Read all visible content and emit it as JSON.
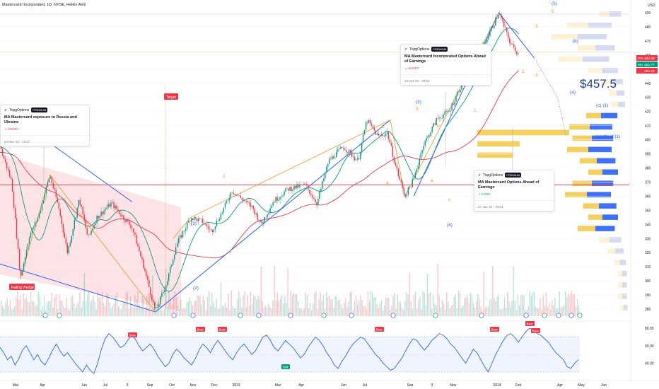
{
  "header": {
    "title": "Mastercard Incorporated, 1D, NYSE, Heikin Ashi",
    "currency": "USD"
  },
  "chart_data": [
    {
      "type": "candlestick",
      "x_ticks": [
        "Mar",
        "Apr",
        "Jun",
        "Jul",
        "3",
        "Sep",
        "Oct",
        "Nov",
        "Dec",
        "2023",
        "Mar",
        "Apr",
        "Jun",
        "Jul",
        "Sep",
        "3",
        "Nov",
        "2024",
        "Feb",
        "Apr",
        "May",
        "Jun"
      ],
      "y_ticks": [
        280,
        290,
        300,
        310,
        320,
        330,
        340,
        350,
        360,
        370,
        380,
        390,
        400,
        410,
        420,
        430,
        440,
        450,
        460,
        470,
        480,
        490
      ],
      "ylim": [
        275,
        495
      ],
      "price_path": [
        {
          "t": 0,
          "v": 395
        },
        {
          "t": 0.02,
          "v": 370
        },
        {
          "t": 0.035,
          "v": 302
        },
        {
          "t": 0.05,
          "v": 332
        },
        {
          "t": 0.065,
          "v": 345
        },
        {
          "t": 0.085,
          "v": 375
        },
        {
          "t": 0.1,
          "v": 352
        },
        {
          "t": 0.115,
          "v": 320
        },
        {
          "t": 0.135,
          "v": 358
        },
        {
          "t": 0.15,
          "v": 330
        },
        {
          "t": 0.165,
          "v": 345
        },
        {
          "t": 0.19,
          "v": 355
        },
        {
          "t": 0.21,
          "v": 345
        },
        {
          "t": 0.225,
          "v": 338
        },
        {
          "t": 0.245,
          "v": 310
        },
        {
          "t": 0.265,
          "v": 278
        },
        {
          "t": 0.285,
          "v": 300
        },
        {
          "t": 0.3,
          "v": 325
        },
        {
          "t": 0.325,
          "v": 345
        },
        {
          "t": 0.345,
          "v": 342
        },
        {
          "t": 0.36,
          "v": 335
        },
        {
          "t": 0.38,
          "v": 350
        },
        {
          "t": 0.395,
          "v": 364
        },
        {
          "t": 0.415,
          "v": 357
        },
        {
          "t": 0.43,
          "v": 352
        },
        {
          "t": 0.445,
          "v": 340
        },
        {
          "t": 0.465,
          "v": 356
        },
        {
          "t": 0.49,
          "v": 365
        },
        {
          "t": 0.52,
          "v": 368
        },
        {
          "t": 0.54,
          "v": 355
        },
        {
          "t": 0.56,
          "v": 385
        },
        {
          "t": 0.585,
          "v": 395
        },
        {
          "t": 0.61,
          "v": 385
        },
        {
          "t": 0.625,
          "v": 414
        },
        {
          "t": 0.645,
          "v": 402
        },
        {
          "t": 0.66,
          "v": 405
        },
        {
          "t": 0.675,
          "v": 380
        },
        {
          "t": 0.69,
          "v": 360
        },
        {
          "t": 0.705,
          "v": 372
        },
        {
          "t": 0.72,
          "v": 395
        },
        {
          "t": 0.745,
          "v": 415
        },
        {
          "t": 0.765,
          "v": 420
        },
        {
          "t": 0.785,
          "v": 438
        },
        {
          "t": 0.8,
          "v": 450
        },
        {
          "t": 0.815,
          "v": 460
        },
        {
          "t": 0.83,
          "v": 472
        },
        {
          "t": 0.85,
          "v": 490
        },
        {
          "t": 0.87,
          "v": 468
        },
        {
          "t": 0.885,
          "v": 460
        }
      ],
      "annotations": {
        "price_target": "$457.5",
        "elliott_labels": [
          "(5)",
          "5",
          "3",
          "(b)",
          "(a)",
          "(c) (1)",
          "(c) (1) of (1)",
          "(3)",
          "3",
          "5",
          "1",
          "b",
          "a",
          "c",
          "(4)",
          "4",
          "3",
          "1",
          "(1)",
          "(2)",
          "1",
          "4"
        ],
        "tags": {
          "falling_wedge": "Falling Wedge",
          "target": "Target"
        }
      },
      "price_labels": [
        {
          "name": "Pro",
          "value": "462.39",
          "color": "#f23645"
        },
        {
          "name": "MA",
          "value": "462.77",
          "color": "#089981"
        },
        {
          "name": "",
          "value": "462.42",
          "color": "#f23645"
        }
      ]
    },
    {
      "type": "line",
      "name": "RSI",
      "y_ticks": [
        40,
        60,
        80
      ],
      "ylim": [
        25,
        85
      ],
      "band": [
        30,
        70
      ],
      "tags": {
        "bear": "Bear",
        "bull": "Bull"
      },
      "values": [
        58,
        52,
        44,
        48,
        38,
        45,
        55,
        60,
        52,
        44,
        50,
        42,
        38,
        46,
        55,
        62,
        54,
        48,
        52,
        46,
        40,
        35,
        30,
        38,
        32,
        28,
        40,
        56,
        68,
        74,
        70,
        64,
        58,
        60,
        66,
        72,
        68,
        60,
        54,
        58,
        62,
        56,
        48,
        42,
        36,
        40,
        50,
        56,
        52,
        46,
        42,
        38,
        45,
        55,
        62,
        58,
        52,
        60,
        66,
        60,
        54,
        48,
        44,
        52,
        58,
        62,
        56,
        50,
        54,
        62,
        70,
        72,
        66,
        58,
        54,
        60,
        66,
        62,
        58,
        52,
        46,
        50,
        58,
        64,
        70,
        66,
        60,
        52,
        46,
        38,
        34,
        42,
        48,
        56,
        62,
        66,
        70,
        68,
        62,
        56,
        50,
        46,
        40,
        36,
        32,
        34,
        40,
        46,
        54,
        62,
        68,
        66,
        60,
        55,
        60,
        66,
        70,
        74,
        72,
        68,
        62,
        58,
        52,
        46,
        40,
        48,
        56,
        52,
        44,
        36,
        30,
        40,
        50,
        58,
        66,
        72,
        74,
        70,
        64,
        70,
        76,
        80,
        78,
        74,
        72,
        68,
        64,
        58,
        52,
        48,
        44,
        36,
        34,
        40,
        44
      ]
    }
  ],
  "cards": [
    {
      "brand": "TopgOptions",
      "badge": "PREMIUM",
      "title": "MA Mastercard exposure to Russia and Ukraine",
      "direction": "SHORT",
      "date": "04 Mar '22 - 13:17"
    },
    {
      "brand": "TopgOptions",
      "badge": "PREMIUM",
      "title": "MA Mastercard Incorporated Options Ahead of Earnings",
      "direction": "SHORT",
      "date": "24 Oct '23 - 09:01"
    },
    {
      "brand": "TopgOptions",
      "badge": "PREMIUM",
      "title": "MA Mastercard Options Ahead of Earnings",
      "direction": "LONG",
      "date": "27 Jan '24 - 08:41"
    }
  ],
  "colors": {
    "up": "#089981",
    "down": "#f23645",
    "ma_green": "#089981",
    "ma_red": "#f23645",
    "trend_blue": "#2962ff",
    "orange": "#f7931a",
    "vp_blue": "#2962ff",
    "vp_yellow": "#f5c842"
  }
}
